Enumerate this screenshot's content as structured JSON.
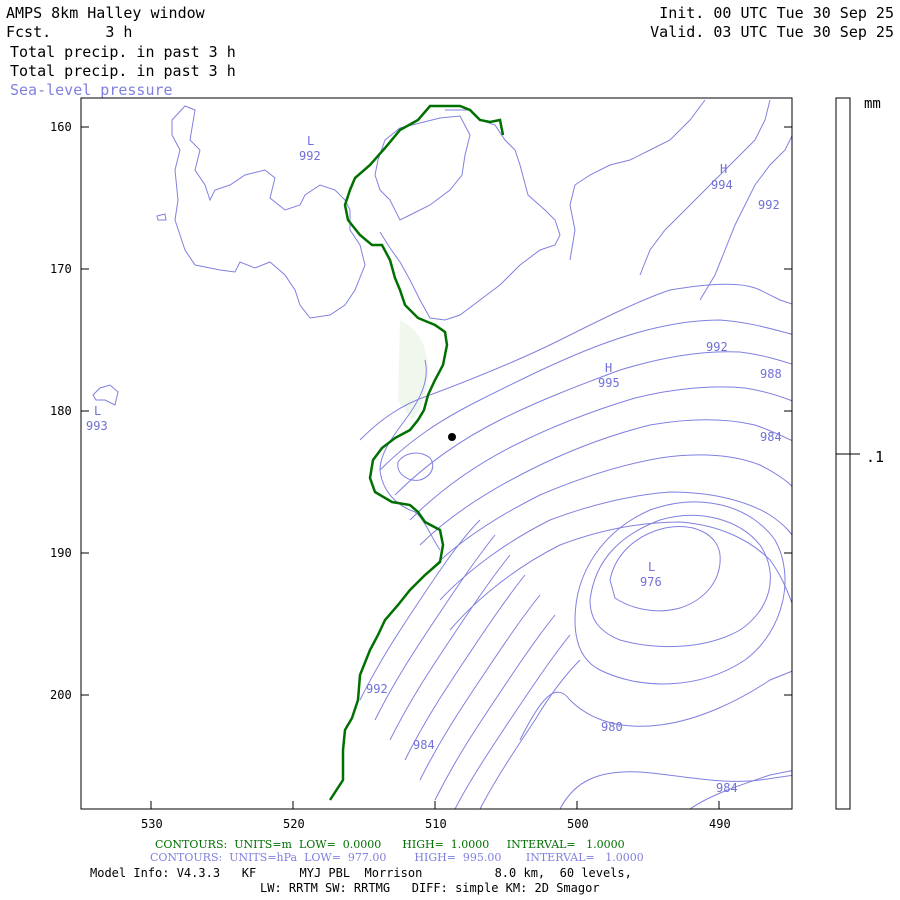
{
  "header": {
    "title": "AMPS 8km Halley window",
    "fcst": "Fcst.      3 h",
    "field1": "Total precip. in past 3 h",
    "field2": "Total precip. in past 3 h",
    "field3": "Sea-level pressure",
    "init": "Init. 00 UTC Tue 30 Sep 25",
    "valid": "Valid. 03 UTC Tue 30 Sep 25"
  },
  "axes": {
    "y_ticks": [
      "160",
      "170",
      "180",
      "190",
      "200"
    ],
    "x_ticks": [
      "530",
      "520",
      "510",
      "500",
      "490"
    ]
  },
  "colorbar": {
    "unit": "mm",
    "tick": ".1"
  },
  "pressure_labels": [
    {
      "text": "L",
      "role": "low-marker"
    },
    {
      "text": "992",
      "role": "value"
    },
    {
      "text": "H",
      "role": "high-marker"
    },
    {
      "text": "994",
      "role": "value"
    },
    {
      "text": "992",
      "role": "value"
    },
    {
      "text": "L",
      "role": "low-marker"
    },
    {
      "text": "993",
      "role": "value"
    },
    {
      "text": "H",
      "role": "high-marker"
    },
    {
      "text": "995",
      "role": "value"
    },
    {
      "text": "992",
      "role": "value"
    },
    {
      "text": "988",
      "role": "value"
    },
    {
      "text": "984",
      "role": "value"
    },
    {
      "text": "L",
      "role": "low-marker"
    },
    {
      "text": "976",
      "role": "value"
    },
    {
      "text": "992",
      "role": "value"
    },
    {
      "text": "984",
      "role": "value"
    },
    {
      "text": "980",
      "role": "value"
    },
    {
      "text": "984",
      "role": "value"
    }
  ],
  "footer": {
    "contours1": "CONTOURS:  UNITS=m  LOW=  0.0000      HIGH=  1.0000     INTERVAL=   1.0000",
    "contours2": "CONTOURS:  UNITS=hPa  LOW=  977.00        HIGH=  995.00       INTERVAL=   1.0000",
    "model1": "Model Info: V4.3.3   KF      MYJ PBL  Morrison          8.0 km,  60 levels,",
    "model2": "LW: RRTM SW: RRTMG   DIFF: simple KM: 2D Smagor"
  },
  "colors": {
    "contour_blue": "#8080e0",
    "coast_green": "#006400",
    "precip_fill": "#f0f8f0"
  }
}
